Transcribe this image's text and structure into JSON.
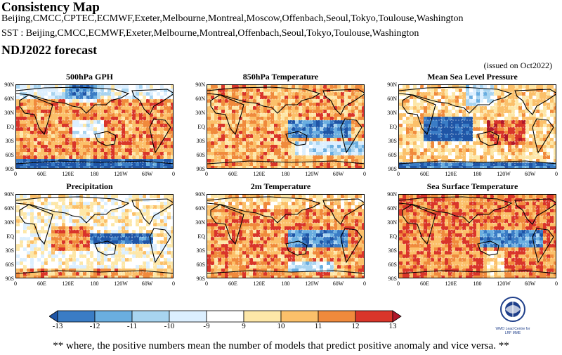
{
  "header": {
    "title": "Consistency Map",
    "models_line": "Beijing,CMCC,CPTEC,ECMWF,Exeter,Melbourne,Montreal,Moscow,Offenbach,Seoul,Tokyo,Toulouse,Washington",
    "sst_line": "SST : Beijing,CMCC,ECMWF,Exeter,Melbourne,Montreal,Offenbach,Seoul,Tokyo,Toulouse,Washington",
    "forecast": "NDJ2022 forecast",
    "issued": "(issued on Oct2022)"
  },
  "chart_data": {
    "type": "heatmap",
    "lat_ticks": [
      "90N",
      "60N",
      "30N",
      "EQ",
      "30S",
      "60S",
      "90S"
    ],
    "lon_ticks": [
      "0",
      "60E",
      "120E",
      "180",
      "120W",
      "60W",
      "0"
    ],
    "panels": [
      {
        "title": "500hPa GPH",
        "pattern": "gph"
      },
      {
        "title": "850hPa Temperature",
        "pattern": "t850"
      },
      {
        "title": "Mean Sea Level Pressure",
        "pattern": "mslp"
      },
      {
        "title": "Precipitation",
        "pattern": "prcp"
      },
      {
        "title": "2m Temperature",
        "pattern": "t2m"
      },
      {
        "title": "Sea Surface Temperature",
        "pattern": "sst"
      }
    ],
    "colorbar": {
      "labels": [
        "-13",
        "-12",
        "-11",
        "-10",
        "-9",
        "9",
        "10",
        "11",
        "12",
        "13"
      ],
      "colors": [
        "#1f55a6",
        "#3a7cc5",
        "#6aaee0",
        "#a8d4f0",
        "#dcefff",
        "#ffffff",
        "#fde7a8",
        "#fbc06a",
        "#f08a3c",
        "#d9352a",
        "#b0182a"
      ]
    }
  },
  "footer_note": "** where, the positive numbers mean the number of models that predict positive anomaly and vice versa. **",
  "logo": {
    "line1": "WMO Lead Centre for",
    "line2": "LRF MME"
  }
}
